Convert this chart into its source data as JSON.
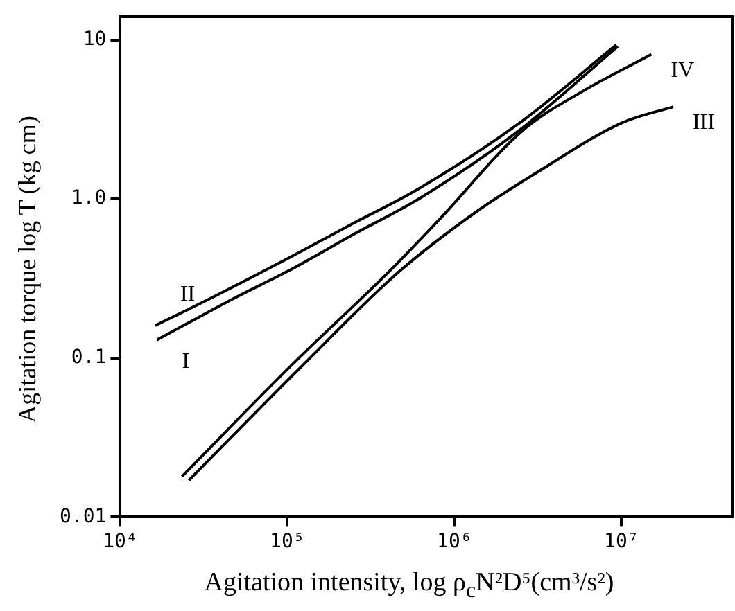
{
  "chart_data": {
    "type": "line",
    "xlabel": "Agitation intensity, log ρ$_{c}$N²D⁵(cm³/s²)",
    "ylabel": "Agitation torque log T (kg cm)",
    "log": "xy",
    "grid": false,
    "legend": false,
    "marker": "none",
    "line_style": "solid",
    "xlim": [
      10000,
      46000000
    ],
    "ylim": [
      0.01,
      14
    ],
    "xticks": [
      {
        "value": 10000,
        "label": "10⁴"
      },
      {
        "value": 100000,
        "label": "10⁵"
      },
      {
        "value": 1000000,
        "label": "10⁶"
      },
      {
        "value": 10000000,
        "label": "10⁷"
      }
    ],
    "yticks": [
      {
        "value": 0.01,
        "label": "0.01"
      },
      {
        "value": 0.1,
        "label": "0.1"
      },
      {
        "value": 1,
        "label": "1.0"
      },
      {
        "value": 10,
        "label": "10"
      }
    ],
    "series": [
      {
        "name": "I",
        "color": "#000000",
        "x": [
          16600,
          49000,
          100000,
          250000,
          630000,
          2500000,
          9500000
        ],
        "values": [
          0.13,
          0.24,
          0.35,
          0.6,
          1.02,
          2.75,
          9.1
        ]
      },
      {
        "name": "II",
        "color": "#000000",
        "x": [
          16200,
          35500,
          95500,
          240000,
          603000,
          2450000,
          9300000
        ],
        "values": [
          0.16,
          0.24,
          0.41,
          0.69,
          1.15,
          3.0,
          9.3
        ]
      },
      {
        "name": "III",
        "color": "#000000",
        "x": [
          25700,
          117000,
          468000,
          1350000,
          3160000,
          10000000,
          20400000
        ],
        "values": [
          0.017,
          0.085,
          0.35,
          0.83,
          1.48,
          3.0,
          3.8
        ]
      },
      {
        "name": "IV",
        "color": "#000000",
        "x": [
          23400,
          107000,
          407000,
          790000,
          2570000,
          5750000,
          15100000
        ],
        "values": [
          0.018,
          0.091,
          0.35,
          0.72,
          2.7,
          4.7,
          8.1
        ]
      }
    ]
  }
}
